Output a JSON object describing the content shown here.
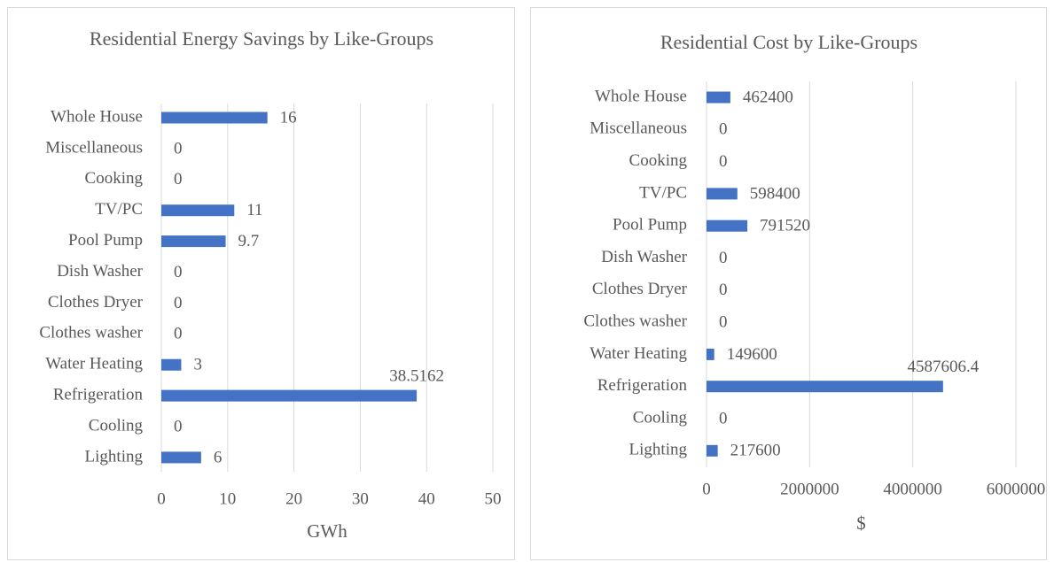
{
  "chart_data": [
    {
      "type": "bar",
      "title": "Residential Energy Savings by Like-Groups",
      "categories": [
        "Whole House",
        "Miscellaneous",
        "Cooking",
        "TV/PC",
        "Pool Pump",
        "Dish Washer",
        "Clothes Dryer",
        "Clothes washer",
        "Water Heating",
        "Refrigeration",
        "Cooling",
        "Lighting"
      ],
      "values": [
        16,
        0,
        0,
        11,
        9.7,
        0,
        0,
        0,
        3,
        38.5162,
        0,
        6
      ],
      "color": "#4472c4",
      "xlim": [
        0,
        50
      ],
      "xticks": [
        0,
        10,
        20,
        30,
        40,
        50
      ],
      "x_label": "GWh",
      "grid": true
    },
    {
      "type": "bar",
      "title": "Residential Cost by Like-Groups",
      "categories": [
        "Whole House",
        "Miscellaneous",
        "Cooking",
        "TV/PC",
        "Pool Pump",
        "Dish Washer",
        "Clothes Dryer",
        "Clothes washer",
        "Water Heating",
        "Refrigeration",
        "Cooling",
        "Lighting"
      ],
      "values": [
        462400,
        0,
        0,
        598400,
        791520,
        0,
        0,
        0,
        149600,
        4587606.4,
        0,
        217600
      ],
      "color": "#4472c4",
      "xlim": [
        0,
        6000000
      ],
      "xticks": [
        0,
        2000000,
        4000000,
        6000000
      ],
      "x_label": "$",
      "grid": true
    }
  ]
}
